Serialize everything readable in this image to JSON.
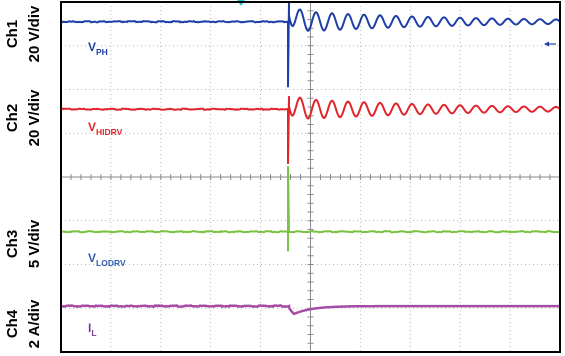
{
  "chart_data": {
    "type": "line",
    "title": "",
    "xlabel": "",
    "ylabel": "",
    "divisions": {
      "x": 10,
      "y": 8
    },
    "trigger_marker": "cyan-triangle",
    "channels": [
      {
        "id": "ch1",
        "name": "Ch1",
        "scale": "20 V/div",
        "signal": "V",
        "signal_sub": "PH",
        "color": "#1f3fa8",
        "baseline_div": 0.45,
        "edge_div": 4.55,
        "spike_low_div": 1.5,
        "overshoot_div": -0.45,
        "ring_amp_div": 0.25,
        "ring_cycles": 17,
        "end_marker": "blue-arrow"
      },
      {
        "id": "ch2",
        "name": "Ch2",
        "scale": "20 V/div",
        "signal": "V",
        "signal_sub": "HIDRV",
        "color": "#e0262b",
        "baseline_div": 2.45,
        "edge_div": 4.55,
        "spike_low_div": 1.25,
        "overshoot_div": -0.3,
        "ring_amp_div": 0.25,
        "ring_cycles": 17
      },
      {
        "id": "ch3",
        "name": "Ch3",
        "scale": "5 V/div",
        "signal": "V",
        "signal_sub": "LODRV",
        "color": "#7cc242",
        "baseline_div": 5.25,
        "edge_div": 4.55,
        "spike_high_div": 1.5,
        "spike_low_div": 0.45
      },
      {
        "id": "ch4",
        "name": "Ch4",
        "scale": "2 A/div",
        "signal": "I",
        "signal_sub": "L",
        "color": "#a64ca6",
        "baseline_div": 6.95,
        "edge_div": 4.55,
        "dip_div": 0.25
      }
    ]
  }
}
